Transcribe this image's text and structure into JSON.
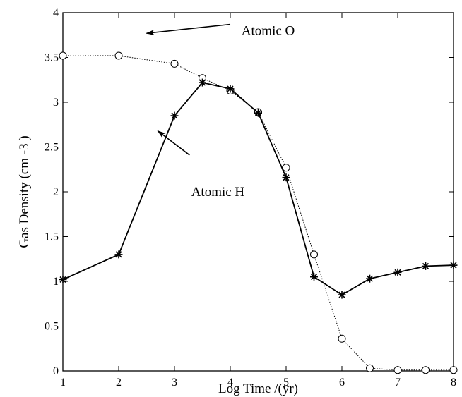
{
  "chart_data": {
    "type": "line",
    "xlabel": "Log Time /(yr)",
    "ylabel": "Gas Density  (cm  -3 )",
    "xlim": [
      1,
      8
    ],
    "ylim": [
      0,
      4
    ],
    "x_ticks": [
      1,
      2,
      3,
      4,
      5,
      6,
      7,
      8
    ],
    "y_ticks": [
      0,
      0.5,
      1,
      1.5,
      2,
      2.5,
      3,
      3.5,
      4
    ],
    "y_tick_labels": [
      "0",
      "0.5",
      "1",
      "1.5",
      "2",
      "2.5",
      "3",
      "3.5",
      "4"
    ],
    "grid": false,
    "series": [
      {
        "name": "Atomic O",
        "style": "dotted",
        "marker": "open-circle",
        "x": [
          1,
          2,
          3,
          3.5,
          4,
          4.5,
          5,
          5.5,
          6,
          6.5,
          7,
          7.5,
          8
        ],
        "y": [
          3.52,
          3.52,
          3.43,
          3.27,
          3.13,
          2.89,
          2.27,
          1.3,
          0.36,
          0.03,
          0.01,
          0.01,
          0.01
        ]
      },
      {
        "name": "Atomic H",
        "style": "solid",
        "marker": "asterisk",
        "x": [
          1,
          2,
          3,
          3.5,
          4,
          4.5,
          5,
          5.5,
          6,
          6.5,
          7,
          7.5,
          8
        ],
        "y": [
          1.02,
          1.3,
          2.85,
          3.22,
          3.15,
          2.88,
          2.16,
          1.05,
          0.85,
          1.03,
          1.1,
          1.17,
          1.18
        ]
      }
    ],
    "annotations": [
      {
        "text": "Atomic O",
        "x": 4.2,
        "y": 3.8,
        "arrow_from": [
          4.0,
          3.87
        ],
        "arrow_to": [
          2.5,
          3.77
        ]
      },
      {
        "text": "Atomic H",
        "x": 3.3,
        "y": 2.0,
        "arrow_from": [
          3.27,
          2.41
        ],
        "arrow_to": [
          2.7,
          2.68
        ]
      }
    ]
  }
}
